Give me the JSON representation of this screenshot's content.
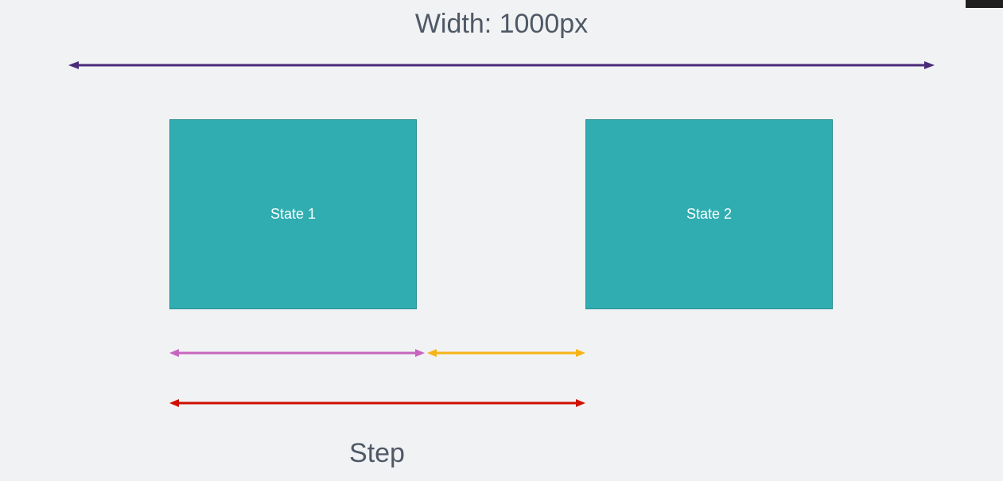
{
  "title": "Width: 1000px",
  "states": [
    {
      "label": "State 1"
    },
    {
      "label": "State 2"
    }
  ],
  "step_label": "Step",
  "colors": {
    "background": "#f1f2f4",
    "state_fill": "#30adb1",
    "width_arrow": "#4b2a7a",
    "state_width_arrow": "#c765be",
    "gap_arrow": "#f5b417",
    "step_arrow": "#d00f00",
    "text": "#4f5966"
  }
}
